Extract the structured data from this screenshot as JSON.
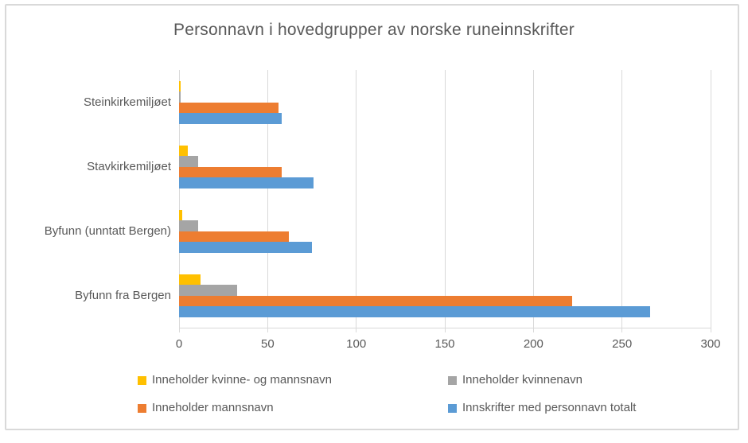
{
  "chart_data": {
    "type": "bar",
    "orientation": "horizontal",
    "title": "Personnavn i hovedgrupper av norske runeinnskrifter",
    "categories": [
      "Steinkirkemiljøet",
      "Stavkirkemiljøet",
      "Byfunn (unntatt Bergen)",
      "Byfunn fra Bergen"
    ],
    "series": [
      {
        "name": "Inneholder kvinne- og mannsnavn",
        "color": "#FFC000",
        "values": [
          1,
          5,
          2,
          12
        ]
      },
      {
        "name": "Inneholder kvinnenavn",
        "color": "#A5A5A5",
        "values": [
          1,
          11,
          11,
          33
        ]
      },
      {
        "name": "Inneholder mannsnavn",
        "color": "#ED7D31",
        "values": [
          56,
          58,
          62,
          222
        ]
      },
      {
        "name": "Innskrifter med personnavn totalt",
        "color": "#5B9BD5",
        "values": [
          58,
          76,
          75,
          266
        ]
      }
    ],
    "x_axis": {
      "min": 0,
      "max": 300,
      "step": 50,
      "tick_labels": [
        "0",
        "50",
        "100",
        "150",
        "200",
        "250",
        "300"
      ]
    },
    "grid": true,
    "legend_position": "bottom",
    "text_color": "#595959",
    "grid_color": "#D9D9D9"
  }
}
